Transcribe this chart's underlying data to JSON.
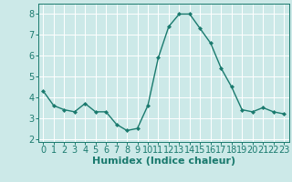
{
  "x": [
    0,
    1,
    2,
    3,
    4,
    5,
    6,
    7,
    8,
    9,
    10,
    11,
    12,
    13,
    14,
    15,
    16,
    17,
    18,
    19,
    20,
    21,
    22,
    23
  ],
  "y": [
    4.3,
    3.6,
    3.4,
    3.3,
    3.7,
    3.3,
    3.3,
    2.7,
    2.4,
    2.5,
    3.6,
    5.9,
    7.4,
    8.0,
    8.0,
    7.3,
    6.6,
    5.4,
    4.5,
    3.4,
    3.3,
    3.5,
    3.3,
    3.2
  ],
  "line_color": "#1a7a6e",
  "marker": "D",
  "marker_size": 2.0,
  "bg_color": "#cce9e8",
  "grid_color": "#ffffff",
  "xlabel": "Humidex (Indice chaleur)",
  "xlabel_fontsize": 8,
  "xlim": [
    -0.5,
    23.5
  ],
  "ylim": [
    1.85,
    8.5
  ],
  "yticks": [
    2,
    3,
    4,
    5,
    6,
    7,
    8
  ],
  "xticks": [
    0,
    1,
    2,
    3,
    4,
    5,
    6,
    7,
    8,
    9,
    10,
    11,
    12,
    13,
    14,
    15,
    16,
    17,
    18,
    19,
    20,
    21,
    22,
    23
  ],
  "tick_fontsize": 7,
  "line_width": 1.0
}
